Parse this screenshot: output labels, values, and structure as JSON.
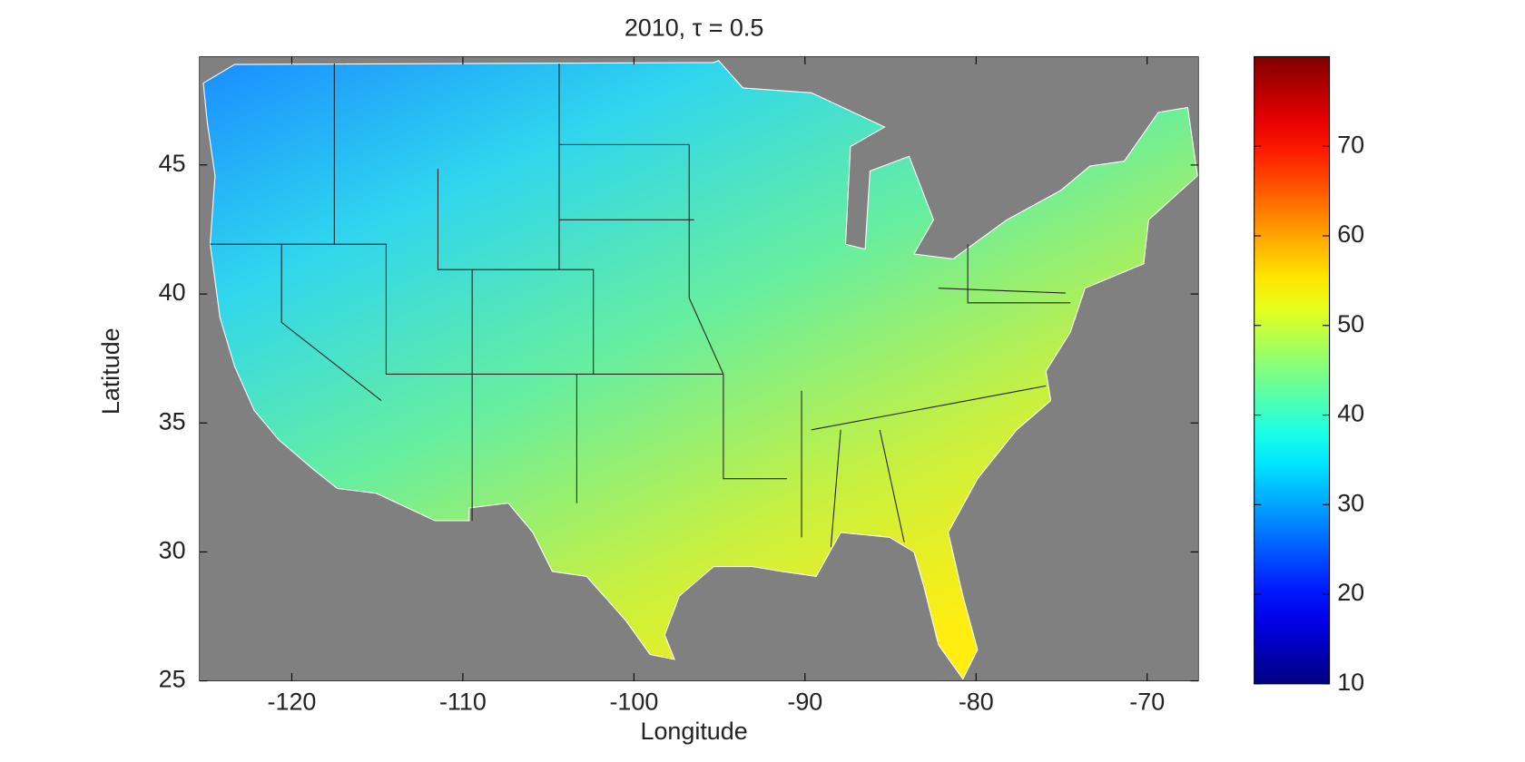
{
  "chart_data": {
    "type": "heatmap",
    "title": "2010, τ = 0.5",
    "x_label": "Longitude",
    "y_label": "Latitude",
    "xlim": [
      -125.4,
      -67
    ],
    "xticks": [
      -120,
      -110,
      -100,
      -90,
      -80,
      -70
    ],
    "ylim": [
      25,
      49.2
    ],
    "yticks": [
      25,
      30,
      35,
      40,
      45
    ],
    "colormap": "jet",
    "background": "#808080",
    "colorbar": {
      "lim": [
        10,
        80
      ],
      "ticks": [
        10,
        20,
        30,
        40,
        50,
        60,
        70
      ]
    }
  }
}
